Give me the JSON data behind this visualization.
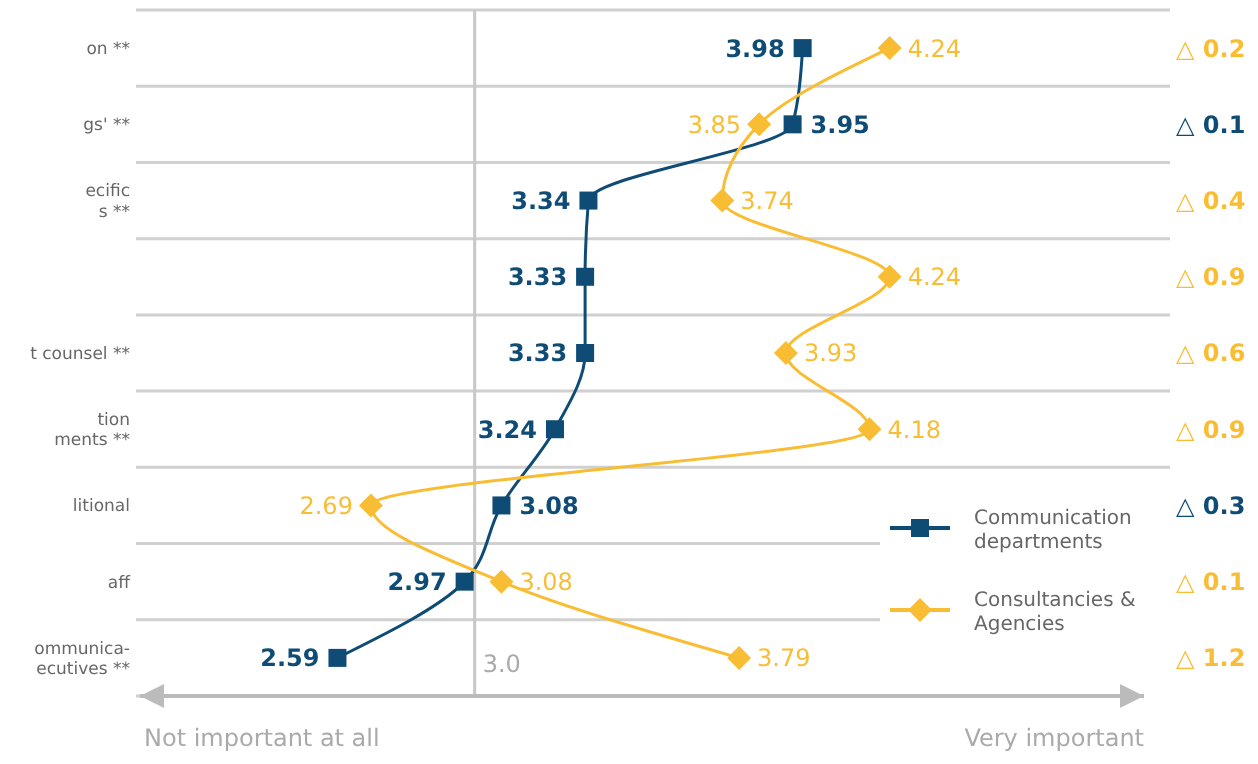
{
  "chart_data": {
    "type": "line",
    "orientation": "horizontal",
    "categories": [
      "on **",
      "gs' **",
      "ecific\ns **",
      null,
      "t counsel **",
      "tion\nments **",
      "litional",
      "aff",
      "ommunica-\necutives **"
    ],
    "series": [
      {
        "name": "Communication\ndepartments",
        "color": "#0f4c75",
        "values": [
          3.98,
          3.95,
          3.34,
          3.33,
          3.33,
          3.24,
          3.08,
          2.97,
          2.59
        ],
        "marker": "square"
      },
      {
        "name": "Consultancies &\nAgencies",
        "color": "#f9bd34",
        "values": [
          4.24,
          3.85,
          3.74,
          4.24,
          3.93,
          4.18,
          2.69,
          3.08,
          3.79
        ],
        "marker": "diamond"
      }
    ],
    "xlim": [
      2,
      5
    ],
    "tick_labels": "y",
    "data_labels": true,
    "grid": "y",
    "legend": "bottom right",
    "ref_lines": [
      {
        "axis": "x",
        "value": 3,
        "label": "3.0",
        "color": "#c8c8c8"
      }
    ],
    "annotations": [
      "Not important at all",
      "Very important",
      "△ 0.2",
      "△ 0.1",
      "△ 0.4",
      "△ 0.9",
      "△ 0.6",
      "△ 0.9",
      "△ 0.3",
      "△ 0.1",
      "△ 1.2"
    ]
  }
}
